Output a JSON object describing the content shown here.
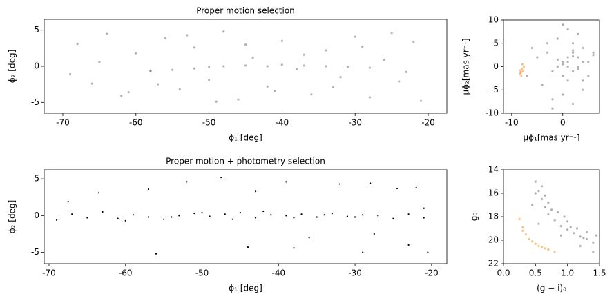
{
  "chart_data": [
    {
      "type": "scatter",
      "title": "Proper motion selection",
      "x_label": "ϕ₁ [deg]",
      "y_label": "ϕ₂ [deg]",
      "xlim": [
        -72.55,
        -17.45
      ],
      "ylim": [
        -6.5,
        6.5
      ],
      "xticks": [
        -70,
        -60,
        -50,
        -40,
        -30,
        -20
      ],
      "yticks": [
        -5,
        0,
        5
      ],
      "series": [
        {
          "color": "#000000",
          "alpha": 0.3,
          "x": [
            -68,
            -66,
            -64,
            -62,
            -60,
            -58,
            -56,
            -54,
            -52,
            -50,
            -48,
            -46,
            -44,
            -42,
            -40,
            -38,
            -36,
            -34,
            -32,
            -30,
            -28,
            -26,
            -24,
            -22,
            -21,
            -69,
            -65,
            -61,
            -57,
            -53,
            -49,
            -45,
            -41,
            -37,
            -33,
            -29,
            -25,
            -23,
            -58,
            -55,
            -52,
            -50,
            -48,
            -45,
            -42,
            -40,
            -37,
            -34,
            -31,
            -28
          ],
          "y": [
            3.1,
            -2.4,
            4.5,
            -4.1,
            1.8,
            -0.7,
            3.9,
            -3.2,
            2.6,
            -1.9,
            4.8,
            -4.6,
            1.2,
            -2.8,
            3.5,
            -0.4,
            -3.9,
            2.2,
            -1.5,
            4.1,
            -4.3,
            0.9,
            -2.1,
            3.3,
            -4.8,
            -1.1,
            0.6,
            -3.6,
            -2.5,
            4.3,
            -4.9,
            3.0,
            -3.4,
            1.6,
            -2.9,
            2.7,
            4.6,
            -0.8,
            -0.6,
            -0.5,
            -0.3,
            -0.1,
            0.0,
            0.1,
            0.0,
            0.2,
            0.1,
            0.0,
            -0.1,
            -0.2
          ]
        }
      ]
    },
    {
      "type": "scatter",
      "x_label": "μϕ₁[mas yr⁻¹]",
      "y_label": "μϕ₂[mas yr⁻¹]",
      "xlim": [
        -11.6,
        7.2
      ],
      "ylim": [
        -10,
        10
      ],
      "xticks": [
        -10,
        0
      ],
      "yticks": [
        -10,
        -5,
        0,
        5,
        10
      ],
      "series": [
        {
          "color": "#000000",
          "alpha": 0.3,
          "x": [
            1,
            2,
            0,
            -1,
            3,
            4,
            -2,
            1,
            2,
            5,
            -3,
            0,
            3,
            6,
            -4,
            2,
            -1,
            4,
            1,
            0,
            -5,
            3,
            -2,
            5,
            2,
            -6,
            1,
            4,
            -3,
            0,
            6,
            -1,
            2,
            3,
            -7,
            1,
            -2,
            4,
            0,
            2
          ],
          "y": [
            2,
            3,
            1,
            0,
            2,
            4,
            -1,
            -3,
            5,
            1,
            3,
            -2,
            0,
            3,
            -4,
            -1,
            6,
            -5,
            1,
            -6,
            2,
            7,
            -7,
            -2,
            -8,
            4,
            8,
            -3,
            5,
            0.5,
            2.5,
            1.5,
            3.5,
            -0.5,
            -2,
            0,
            -9,
            1,
            9,
            2.2
          ]
        },
        {
          "color": "#ff7f0e",
          "alpha": 0.5,
          "x": [
            -8,
            -7.8,
            -8.3,
            -7.6,
            -8.1,
            -8.4,
            -7.9,
            -8.2
          ],
          "y": [
            -0.5,
            -1,
            -1.5,
            0,
            -2,
            -0.8,
            0.5,
            -1.2
          ]
        }
      ]
    },
    {
      "type": "scatter",
      "title": "Proper motion + photometry selection",
      "x_label": "ϕ₁ [deg]",
      "y_label": "ϕ₂ [deg]",
      "xlim": [
        -70.63,
        -18.0
      ],
      "ylim": [
        -6.54,
        6.23
      ],
      "xticks": [
        -70,
        -60,
        -50,
        -40,
        -30,
        -20
      ],
      "yticks": [
        -5,
        0,
        5
      ],
      "series": [
        {
          "color": "#000000",
          "alpha": 1,
          "x": [
            -69,
            -67,
            -65,
            -63,
            -61,
            -59,
            -57,
            -55,
            -53,
            -51,
            -49,
            -47,
            -45,
            -43,
            -41,
            -39,
            -37,
            -35,
            -33,
            -31,
            -29,
            -27,
            -25,
            -23,
            -21,
            -60,
            -54,
            -50,
            -46,
            -42,
            -38,
            -34,
            -30,
            -67.5,
            -63.5,
            -57,
            -52,
            -47.5,
            -43,
            -39,
            -36,
            -32,
            -28,
            -27.5,
            -24.5,
            -22,
            -21,
            -20.5,
            -56,
            -44,
            -38,
            -29,
            -23
          ],
          "y": [
            -0.6,
            0.2,
            -0.3,
            0.5,
            -0.4,
            0.1,
            -0.2,
            -0.5,
            0.0,
            0.3,
            -0.1,
            0.2,
            0.4,
            -0.3,
            0.1,
            0.0,
            0.2,
            -0.2,
            0.3,
            -0.1,
            0.1,
            0.0,
            -0.4,
            0.2,
            -0.3,
            -0.7,
            -0.2,
            0.4,
            -0.5,
            0.6,
            -0.3,
            0.1,
            -0.2,
            1.9,
            3.1,
            3.6,
            4.6,
            5.2,
            3.3,
            4.6,
            -3.0,
            4.3,
            4.4,
            -2.5,
            3.7,
            3.8,
            1.0,
            -5.0,
            -5.2,
            -4.3,
            -4.4,
            -5.0,
            -4.0
          ]
        }
      ]
    },
    {
      "type": "scatter",
      "x_label": "(g − i)₀",
      "y_label": "g₀",
      "xlim": [
        0,
        1.5
      ],
      "ylim": [
        22,
        14
      ],
      "xticks": [
        {
          "value": 0,
          "label": "0.0"
        },
        0.5,
        {
          "value": 1,
          "label": "1.0"
        },
        1.5
      ],
      "yticks": [
        14,
        16,
        18,
        20,
        22
      ],
      "series": [
        {
          "color": "#000000",
          "alpha": 0.3,
          "x": [
            0.5,
            0.55,
            0.6,
            0.65,
            0.7,
            0.8,
            0.9,
            1.0,
            1.1,
            1.2,
            1.3,
            1.4,
            0.6,
            0.7,
            0.85,
            1.0,
            1.15,
            1.3,
            1.45,
            0.5,
            0.65,
            0.75,
            0.95,
            1.05,
            1.25,
            0.45,
            0.55,
            0.9,
            1.2,
            1.4
          ],
          "y": [
            15.0,
            15.8,
            16.5,
            17.2,
            17.8,
            18.3,
            18.8,
            19.1,
            19.4,
            19.7,
            19.9,
            20.2,
            15.4,
            16.8,
            17.6,
            18.4,
            19.0,
            19.3,
            19.6,
            16.0,
            16.2,
            17.4,
            18.0,
            18.9,
            19.8,
            17.0,
            18.6,
            19.6,
            20.5,
            21.0
          ]
        },
        {
          "color": "#ff7f0e",
          "alpha": 0.5,
          "x": [
            0.25,
            0.3,
            0.35,
            0.4,
            0.5,
            0.6,
            0.7,
            0.8,
            0.3,
            0.45,
            0.55,
            0.65
          ],
          "y": [
            18.2,
            18.9,
            19.5,
            19.9,
            20.3,
            20.6,
            20.8,
            21.0,
            19.2,
            20.1,
            20.5,
            20.7
          ]
        }
      ]
    }
  ]
}
